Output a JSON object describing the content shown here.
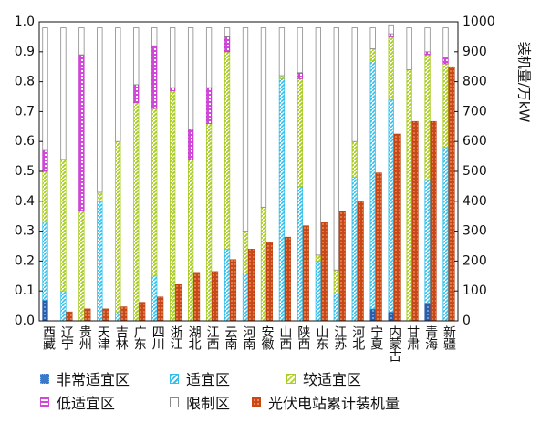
{
  "chart_data": {
    "type": "bar",
    "categories": [
      "西藏",
      "辽宁",
      "贵州",
      "天津",
      "吉林",
      "广东",
      "四川",
      "浙江",
      "湖北",
      "江西",
      "云南",
      "河南",
      "安徽",
      "山西",
      "陕西",
      "山东",
      "江苏",
      "河北",
      "宁夏",
      "内蒙古",
      "甘肃",
      "青海",
      "新疆"
    ],
    "y_left": {
      "ylim": [
        0,
        1.0
      ],
      "ticks": [
        "0.0",
        "0.1",
        "0.2",
        "0.3",
        "0.4",
        "0.5",
        "0.6",
        "0.7",
        "0.8",
        "0.9",
        "1.0"
      ]
    },
    "y_right": {
      "label": "装机量/万kW",
      "ylim": [
        0,
        1000
      ],
      "ticks": [
        "0",
        "100",
        "200",
        "300",
        "400",
        "500",
        "600",
        "700",
        "800",
        "900",
        "1000"
      ]
    },
    "stacked_series": [
      {
        "name": "非常适宜区",
        "color": "#3a78c8",
        "values": [
          0.07,
          0.0,
          0.0,
          0.0,
          0.0,
          0.0,
          0.0,
          0.0,
          0.0,
          0.0,
          0.0,
          0.0,
          0.0,
          0.0,
          0.0,
          0.0,
          0.0,
          0.0,
          0.04,
          0.03,
          0.0,
          0.06,
          0.0
        ]
      },
      {
        "name": "适宜区",
        "color": "#30c0ec",
        "values": [
          0.26,
          0.1,
          0.0,
          0.4,
          0.03,
          0.0,
          0.15,
          0.0,
          0.0,
          0.0,
          0.24,
          0.16,
          0.0,
          0.81,
          0.45,
          0.2,
          0.09,
          0.48,
          0.83,
          0.71,
          0.0,
          0.41,
          0.58
        ]
      },
      {
        "name": "较适宜区",
        "color": "#b8d838",
        "values": [
          0.17,
          0.44,
          0.37,
          0.03,
          0.57,
          0.73,
          0.56,
          0.77,
          0.54,
          0.66,
          0.66,
          0.14,
          0.38,
          0.01,
          0.36,
          0.02,
          0.08,
          0.12,
          0.04,
          0.21,
          0.84,
          0.42,
          0.28
        ]
      },
      {
        "name": "低适宜区",
        "color": "#d048d8",
        "values": [
          0.07,
          0.0,
          0.52,
          0.0,
          0.0,
          0.06,
          0.21,
          0.01,
          0.1,
          0.12,
          0.05,
          0.0,
          0.0,
          0.0,
          0.02,
          0.0,
          0.0,
          0.0,
          0.0,
          0.01,
          0.0,
          0.01,
          0.02
        ]
      },
      {
        "name": "限制区",
        "color": "#ffffff",
        "edge": "#8a8a8a",
        "values": [
          0.41,
          0.44,
          0.09,
          0.55,
          0.38,
          0.19,
          0.06,
          0.2,
          0.34,
          0.2,
          0.03,
          0.68,
          0.6,
          0.16,
          0.15,
          0.76,
          0.81,
          0.38,
          0.07,
          0.03,
          0.14,
          0.08,
          0.1
        ]
      }
    ],
    "line_bar_series": {
      "name": "光伏电站累计装机量",
      "color": "#d8501e",
      "axis": "right",
      "values": [
        0,
        30,
        40,
        40,
        47,
        62,
        80,
        122,
        162,
        165,
        205,
        240,
        262,
        280,
        318,
        330,
        365,
        398,
        495,
        625,
        667,
        667,
        850
      ]
    },
    "grid": false,
    "legend": {
      "placement": "bottom"
    }
  }
}
